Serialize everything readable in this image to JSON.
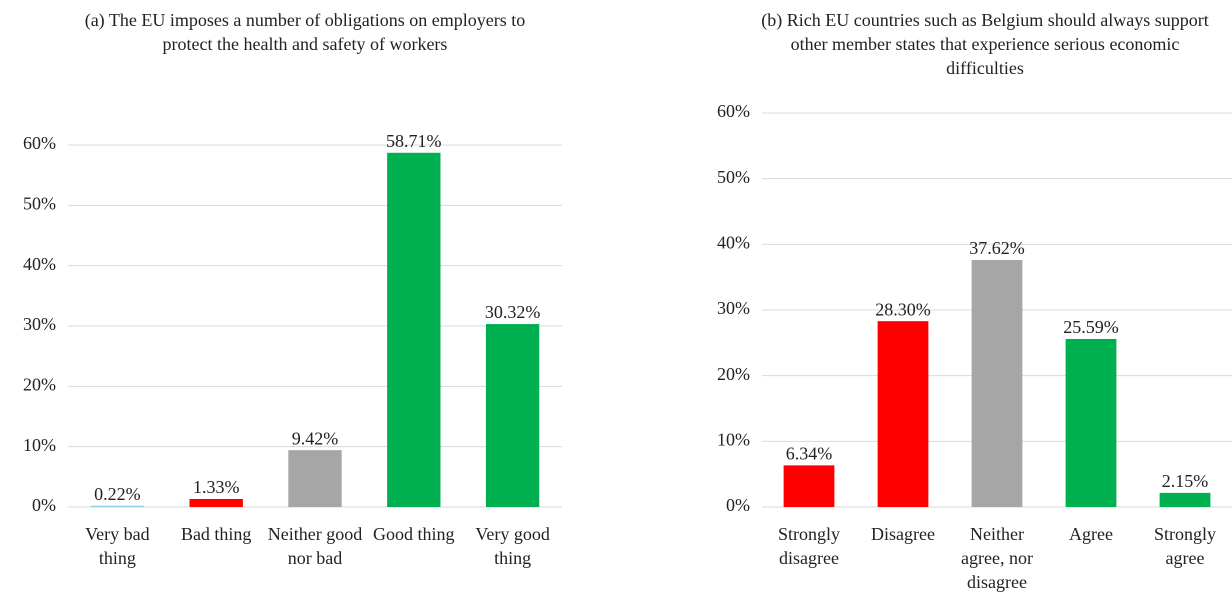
{
  "chart_data": [
    {
      "type": "bar",
      "title": "(a) The EU imposes a number of obligations on employers to protect the health and safety of workers",
      "categories": [
        "Very bad thing",
        "Bad thing",
        "Neither good nor bad",
        "Good thing",
        "Very good thing"
      ],
      "values": [
        0.22,
        1.33,
        9.42,
        58.71,
        30.32
      ],
      "value_labels": [
        "0.22%",
        "1.33%",
        "9.42%",
        "58.71%",
        "30.32%"
      ],
      "colors": [
        "#8dd3e8",
        "#ff0000",
        "#a6a6a6",
        "#00b050",
        "#00b050"
      ],
      "ylim": [
        0,
        60
      ],
      "yticks": [
        {
          "value": 0,
          "label": "0%"
        },
        {
          "value": 10,
          "label": "10%"
        },
        {
          "value": 20,
          "label": "20%"
        },
        {
          "value": 30,
          "label": "30%"
        },
        {
          "value": 40,
          "label": "40%"
        },
        {
          "value": 50,
          "label": "50%"
        },
        {
          "value": 60,
          "label": "60%"
        }
      ],
      "grid": true
    },
    {
      "type": "bar",
      "title": "(b) Rich EU countries such as Belgium should always support other member states that experience serious economic difficulties",
      "categories": [
        "Strongly disagree",
        "Disagree",
        "Neither agree, nor disagree",
        "Agree",
        "Strongly agree"
      ],
      "values": [
        6.34,
        28.3,
        37.62,
        25.59,
        2.15
      ],
      "value_labels": [
        "6.34%",
        "28.30%",
        "37.62%",
        "25.59%",
        "2.15%"
      ],
      "colors": [
        "#ff0000",
        "#ff0000",
        "#a6a6a6",
        "#00b050",
        "#00b050"
      ],
      "ylim": [
        0,
        60
      ],
      "yticks": [
        {
          "value": 0,
          "label": "0%"
        },
        {
          "value": 10,
          "label": "10%"
        },
        {
          "value": 20,
          "label": "20%"
        },
        {
          "value": 30,
          "label": "30%"
        },
        {
          "value": 40,
          "label": "40%"
        },
        {
          "value": 50,
          "label": "50%"
        },
        {
          "value": 60,
          "label": "60%"
        }
      ],
      "grid": true
    }
  ]
}
